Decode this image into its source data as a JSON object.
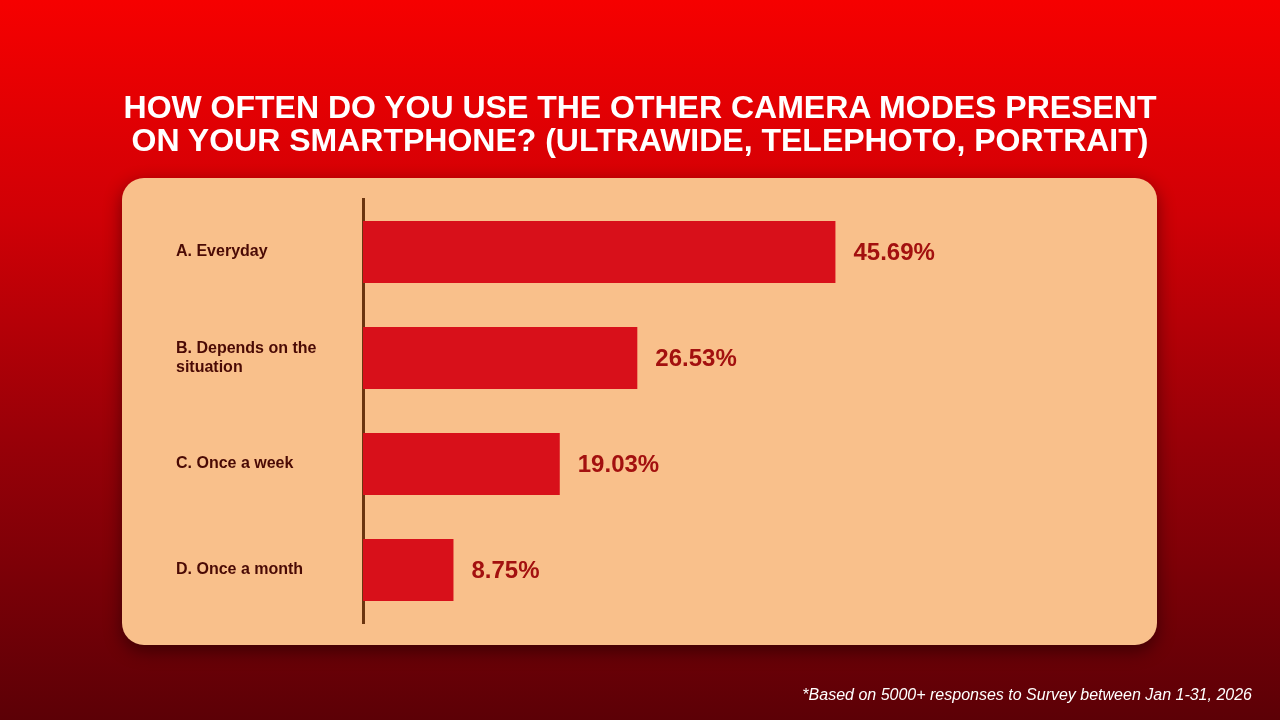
{
  "chart_data": {
    "type": "bar",
    "orientation": "horizontal",
    "title": "HOW OFTEN DO YOU USE THE OTHER CAMERA MODES PRESENT ON YOUR SMARTPHONE? (ULTRAWIDE, TELEPHOTO, PORTRAIT)",
    "categories": [
      "A. Everyday",
      "B. Depends on the situation",
      "C. Once a week",
      "D. Once a month"
    ],
    "values": [
      45.69,
      26.53,
      19.03,
      8.75
    ],
    "color": "#d8101a",
    "value_labels": [
      "45.69%",
      "26.53%",
      "19.03%",
      "8.75%"
    ],
    "tick_labels": "y",
    "annotations": [
      "*Based on 5000+ responses to Survey between Jan 1-31, 2026"
    ]
  }
}
